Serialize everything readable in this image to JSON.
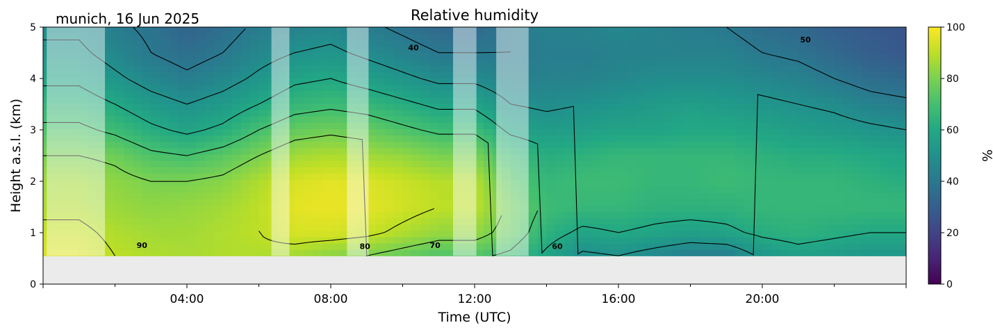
{
  "chart_data": {
    "type": "heatmap",
    "title": "Relative humidity",
    "subtitle": "munich, 16 Jun 2025",
    "xlabel": "Time (UTC)",
    "ylabel": "Height a.s.l. (km)",
    "xlim": [
      0,
      24
    ],
    "ylim": [
      0,
      5
    ],
    "x_ticks": [
      {
        "value": 4,
        "label": "04:00"
      },
      {
        "value": 8,
        "label": "08:00"
      },
      {
        "value": 12,
        "label": "12:00"
      },
      {
        "value": 16,
        "label": "16:00"
      },
      {
        "value": 20,
        "label": "20:00"
      }
    ],
    "y_ticks": [
      0,
      1,
      2,
      3,
      4,
      5
    ],
    "data_floor_km": 0.55,
    "colorbar": {
      "label": "%",
      "colormap": "viridis",
      "range": [
        0,
        100
      ],
      "ticks": [
        0,
        20,
        40,
        60,
        80,
        100
      ]
    },
    "contour_levels": [
      40,
      50,
      60,
      70,
      80,
      90
    ],
    "contour_labels": [
      {
        "text": "90",
        "x": 2.75,
        "y": 0.7
      },
      {
        "text": "80",
        "x": 8.95,
        "y": 0.68
      },
      {
        "text": "70",
        "x": 10.9,
        "y": 0.7
      },
      {
        "text": "60",
        "x": 14.3,
        "y": 0.68
      },
      {
        "text": "40",
        "x": 10.3,
        "y": 4.55
      },
      {
        "text": "50",
        "x": 21.2,
        "y": 4.7
      }
    ],
    "masked_periods_utc": [
      [
        0.1,
        1.72
      ],
      [
        6.35,
        6.85
      ],
      [
        8.45,
        9.05
      ],
      [
        11.4,
        12.05
      ],
      [
        12.6,
        13.5
      ]
    ],
    "profile_time_utc": [
      0,
      1,
      2,
      3,
      4,
      5,
      6,
      7,
      8,
      9,
      10,
      11,
      12,
      13,
      14,
      15,
      16,
      17,
      18,
      19,
      20,
      21,
      22,
      23,
      24
    ],
    "profile_height_km": [
      0.55,
      1.0,
      1.5,
      2.0,
      2.5,
      3.0,
      3.5,
      4.0,
      4.5,
      5.0
    ],
    "rh_percent": [
      [
        95,
        92,
        88,
        86,
        80,
        72,
        65,
        58,
        52,
        48
      ],
      [
        95,
        92,
        88,
        86,
        80,
        72,
        65,
        58,
        52,
        48
      ],
      [
        90,
        88,
        85,
        83,
        78,
        68,
        60,
        52,
        46,
        42
      ],
      [
        88,
        86,
        83,
        80,
        72,
        62,
        54,
        46,
        40,
        38
      ],
      [
        87,
        86,
        84,
        80,
        70,
        58,
        50,
        42,
        36,
        32
      ],
      [
        88,
        88,
        86,
        82,
        74,
        62,
        54,
        46,
        40,
        36
      ],
      [
        88,
        90,
        90,
        88,
        80,
        70,
        60,
        52,
        46,
        42
      ],
      [
        86,
        94,
        96,
        94,
        86,
        76,
        66,
        58,
        50,
        44
      ],
      [
        82,
        94,
        97,
        96,
        88,
        78,
        68,
        60,
        52,
        46
      ],
      [
        80,
        92,
        96,
        95,
        86,
        76,
        66,
        56,
        48,
        42
      ],
      [
        76,
        88,
        93,
        92,
        84,
        72,
        62,
        52,
        44,
        38
      ],
      [
        72,
        84,
        90,
        89,
        80,
        68,
        58,
        48,
        40,
        34
      ],
      [
        72,
        84,
        90,
        89,
        80,
        68,
        58,
        48,
        40,
        34
      ],
      [
        68,
        76,
        78,
        74,
        68,
        58,
        50,
        44,
        40,
        40
      ],
      [
        58,
        64,
        68,
        66,
        62,
        55,
        48,
        44,
        42,
        44
      ],
      [
        48,
        58,
        66,
        68,
        64,
        56,
        50,
        44,
        42,
        44
      ],
      [
        50,
        60,
        66,
        68,
        66,
        58,
        52,
        46,
        44,
        46
      ],
      [
        46,
        58,
        64,
        66,
        66,
        58,
        54,
        48,
        44,
        44
      ],
      [
        42,
        56,
        64,
        66,
        66,
        60,
        56,
        48,
        44,
        42
      ],
      [
        42,
        58,
        64,
        68,
        66,
        60,
        54,
        48,
        44,
        40
      ],
      [
        52,
        62,
        66,
        66,
        64,
        58,
        52,
        46,
        40,
        36
      ],
      [
        56,
        64,
        66,
        66,
        62,
        56,
        50,
        44,
        38,
        34
      ],
      [
        54,
        62,
        66,
        66,
        62,
        54,
        48,
        40,
        34,
        30
      ],
      [
        52,
        60,
        66,
        64,
        60,
        52,
        44,
        36,
        30,
        28
      ],
      [
        52,
        60,
        66,
        62,
        58,
        50,
        42,
        34,
        28,
        26
      ]
    ]
  }
}
